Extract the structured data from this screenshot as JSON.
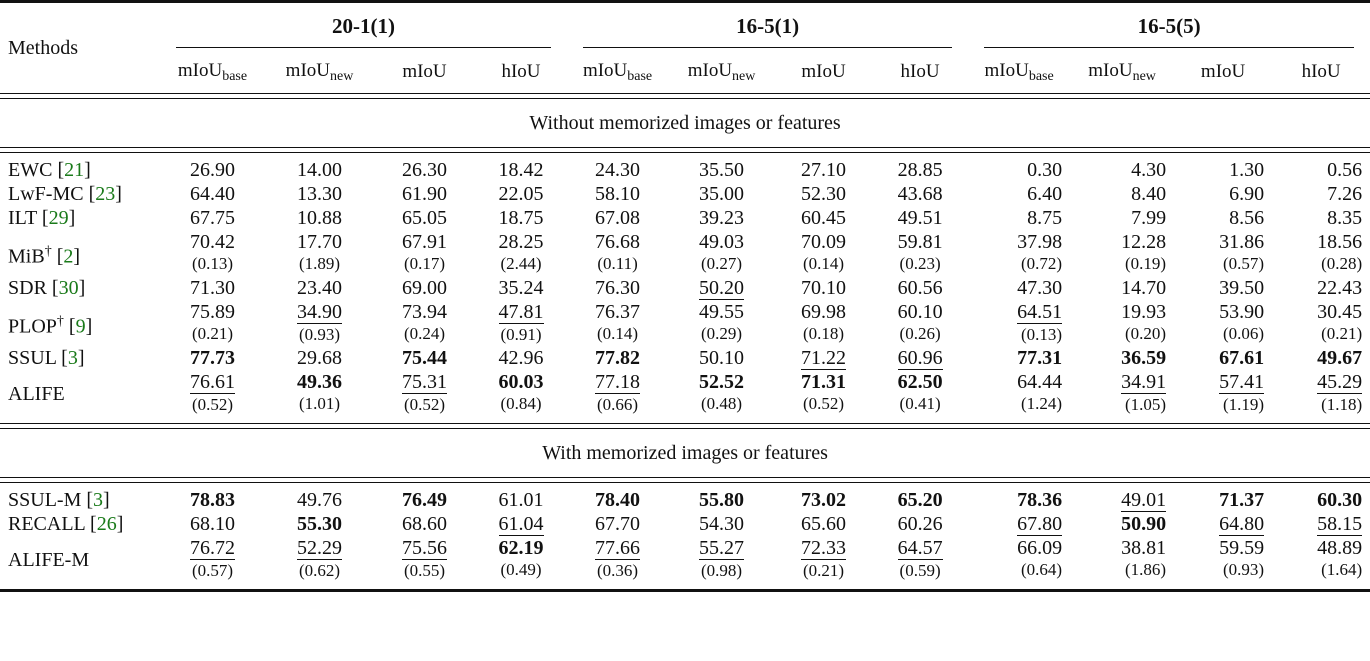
{
  "header": {
    "methods_label": "Methods",
    "groups": [
      "20-1(1)",
      "16-5(1)",
      "16-5(5)"
    ],
    "metrics": [
      {
        "main": "mIoU",
        "sub": "base"
      },
      {
        "main": "mIoU",
        "sub": "new"
      },
      {
        "main": "mIoU",
        "sub": ""
      },
      {
        "main": "hIoU",
        "sub": ""
      }
    ]
  },
  "sections": [
    {
      "title": "Without memorized images or features",
      "rows": [
        {
          "method": "EWC",
          "cite": "21",
          "dagger": "",
          "cells": [
            {
              "v": "26.90"
            },
            {
              "v": "14.00"
            },
            {
              "v": "26.30"
            },
            {
              "v": "18.42"
            },
            {
              "v": "24.30"
            },
            {
              "v": "35.50"
            },
            {
              "v": "27.10"
            },
            {
              "v": "28.85"
            },
            {
              "v": "0.30"
            },
            {
              "v": "4.30"
            },
            {
              "v": "1.30"
            },
            {
              "v": "0.56"
            }
          ]
        },
        {
          "method": "LwF-MC",
          "cite": "23",
          "dagger": "",
          "cells": [
            {
              "v": "64.40"
            },
            {
              "v": "13.30"
            },
            {
              "v": "61.90"
            },
            {
              "v": "22.05"
            },
            {
              "v": "58.10"
            },
            {
              "v": "35.00"
            },
            {
              "v": "52.30"
            },
            {
              "v": "43.68"
            },
            {
              "v": "6.40"
            },
            {
              "v": "8.40"
            },
            {
              "v": "6.90"
            },
            {
              "v": "7.26"
            }
          ]
        },
        {
          "method": "ILT",
          "cite": "29",
          "dagger": "",
          "cells": [
            {
              "v": "67.75"
            },
            {
              "v": "10.88"
            },
            {
              "v": "65.05"
            },
            {
              "v": "18.75"
            },
            {
              "v": "67.08"
            },
            {
              "v": "39.23"
            },
            {
              "v": "60.45"
            },
            {
              "v": "49.51"
            },
            {
              "v": "8.75"
            },
            {
              "v": "7.99"
            },
            {
              "v": "8.56"
            },
            {
              "v": "8.35"
            }
          ]
        },
        {
          "method": "MiB",
          "cite": "2",
          "dagger": "†",
          "cells": [
            {
              "v": "70.42",
              "sd": "(0.13)"
            },
            {
              "v": "17.70",
              "sd": "(1.89)"
            },
            {
              "v": "67.91",
              "sd": "(0.17)"
            },
            {
              "v": "28.25",
              "sd": "(2.44)"
            },
            {
              "v": "76.68",
              "sd": "(0.11)"
            },
            {
              "v": "49.03",
              "sd": "(0.27)"
            },
            {
              "v": "70.09",
              "sd": "(0.14)"
            },
            {
              "v": "59.81",
              "sd": "(0.23)"
            },
            {
              "v": "37.98",
              "sd": "(0.72)"
            },
            {
              "v": "12.28",
              "sd": "(0.19)"
            },
            {
              "v": "31.86",
              "sd": "(0.57)"
            },
            {
              "v": "18.56",
              "sd": "(0.28)"
            }
          ]
        },
        {
          "method": "SDR",
          "cite": "30",
          "dagger": "",
          "cells": [
            {
              "v": "71.30"
            },
            {
              "v": "23.40"
            },
            {
              "v": "69.00"
            },
            {
              "v": "35.24"
            },
            {
              "v": "76.30"
            },
            {
              "v": "50.20",
              "s": "u"
            },
            {
              "v": "70.10"
            },
            {
              "v": "60.56"
            },
            {
              "v": "47.30"
            },
            {
              "v": "14.70"
            },
            {
              "v": "39.50"
            },
            {
              "v": "22.43"
            }
          ]
        },
        {
          "method": "PLOP",
          "cite": "9",
          "dagger": "†",
          "cells": [
            {
              "v": "75.89",
              "sd": "(0.21)"
            },
            {
              "v": "34.90",
              "sd": "(0.93)",
              "s": "u"
            },
            {
              "v": "73.94",
              "sd": "(0.24)"
            },
            {
              "v": "47.81",
              "sd": "(0.91)",
              "s": "u"
            },
            {
              "v": "76.37",
              "sd": "(0.14)"
            },
            {
              "v": "49.55",
              "sd": "(0.29)"
            },
            {
              "v": "69.98",
              "sd": "(0.18)"
            },
            {
              "v": "60.10",
              "sd": "(0.26)"
            },
            {
              "v": "64.51",
              "sd": "(0.13)",
              "s": "u"
            },
            {
              "v": "19.93",
              "sd": "(0.20)"
            },
            {
              "v": "53.90",
              "sd": "(0.06)"
            },
            {
              "v": "30.45",
              "sd": "(0.21)"
            }
          ]
        },
        {
          "method": "SSUL",
          "cite": "3",
          "dagger": "",
          "cells": [
            {
              "v": "77.73",
              "s": "b"
            },
            {
              "v": "29.68"
            },
            {
              "v": "75.44",
              "s": "b"
            },
            {
              "v": "42.96"
            },
            {
              "v": "77.82",
              "s": "b"
            },
            {
              "v": "50.10"
            },
            {
              "v": "71.22",
              "s": "u"
            },
            {
              "v": "60.96",
              "s": "u"
            },
            {
              "v": "77.31",
              "s": "b"
            },
            {
              "v": "36.59",
              "s": "b"
            },
            {
              "v": "67.61",
              "s": "b"
            },
            {
              "v": "49.67",
              "s": "b"
            }
          ]
        },
        {
          "method": "ALIFE",
          "cite": "",
          "dagger": "",
          "cells": [
            {
              "v": "76.61",
              "sd": "(0.52)",
              "s": "u"
            },
            {
              "v": "49.36",
              "sd": "(1.01)",
              "s": "b"
            },
            {
              "v": "75.31",
              "sd": "(0.52)",
              "s": "u"
            },
            {
              "v": "60.03",
              "sd": "(0.84)",
              "s": "b"
            },
            {
              "v": "77.18",
              "sd": "(0.66)",
              "s": "u"
            },
            {
              "v": "52.52",
              "sd": "(0.48)",
              "s": "b"
            },
            {
              "v": "71.31",
              "sd": "(0.52)",
              "s": "b"
            },
            {
              "v": "62.50",
              "sd": "(0.41)",
              "s": "b"
            },
            {
              "v": "64.44",
              "sd": "(1.24)"
            },
            {
              "v": "34.91",
              "sd": "(1.05)",
              "s": "u"
            },
            {
              "v": "57.41",
              "sd": "(1.19)",
              "s": "u"
            },
            {
              "v": "45.29",
              "sd": "(1.18)",
              "s": "u"
            }
          ]
        }
      ]
    },
    {
      "title": "With memorized images or features",
      "rows": [
        {
          "method": "SSUL-M",
          "cite": "3",
          "dagger": "",
          "cells": [
            {
              "v": "78.83",
              "s": "b"
            },
            {
              "v": "49.76"
            },
            {
              "v": "76.49",
              "s": "b"
            },
            {
              "v": "61.01"
            },
            {
              "v": "78.40",
              "s": "b"
            },
            {
              "v": "55.80",
              "s": "b"
            },
            {
              "v": "73.02",
              "s": "b"
            },
            {
              "v": "65.20",
              "s": "b"
            },
            {
              "v": "78.36",
              "s": "b"
            },
            {
              "v": "49.01",
              "s": "u"
            },
            {
              "v": "71.37",
              "s": "b"
            },
            {
              "v": "60.30",
              "s": "b"
            }
          ]
        },
        {
          "method": "RECALL",
          "cite": "26",
          "dagger": "",
          "cells": [
            {
              "v": "68.10"
            },
            {
              "v": "55.30",
              "s": "b"
            },
            {
              "v": "68.60"
            },
            {
              "v": "61.04",
              "s": "u"
            },
            {
              "v": "67.70"
            },
            {
              "v": "54.30"
            },
            {
              "v": "65.60"
            },
            {
              "v": "60.26"
            },
            {
              "v": "67.80",
              "s": "u"
            },
            {
              "v": "50.90",
              "s": "b"
            },
            {
              "v": "64.80",
              "s": "u"
            },
            {
              "v": "58.15",
              "s": "u"
            }
          ]
        },
        {
          "method": "ALIFE-M",
          "cite": "",
          "dagger": "",
          "cells": [
            {
              "v": "76.72",
              "sd": "(0.57)",
              "s": "u"
            },
            {
              "v": "52.29",
              "sd": "(0.62)",
              "s": "u"
            },
            {
              "v": "75.56",
              "sd": "(0.55)",
              "s": "u"
            },
            {
              "v": "62.19",
              "sd": "(0.49)",
              "s": "b"
            },
            {
              "v": "77.66",
              "sd": "(0.36)",
              "s": "u"
            },
            {
              "v": "55.27",
              "sd": "(0.98)",
              "s": "u"
            },
            {
              "v": "72.33",
              "sd": "(0.21)",
              "s": "u"
            },
            {
              "v": "64.57",
              "sd": "(0.59)",
              "s": "u"
            },
            {
              "v": "66.09",
              "sd": "(0.64)"
            },
            {
              "v": "38.81",
              "sd": "(1.86)"
            },
            {
              "v": "59.59",
              "sd": "(0.93)"
            },
            {
              "v": "48.89",
              "sd": "(1.64)"
            }
          ]
        }
      ]
    }
  ]
}
